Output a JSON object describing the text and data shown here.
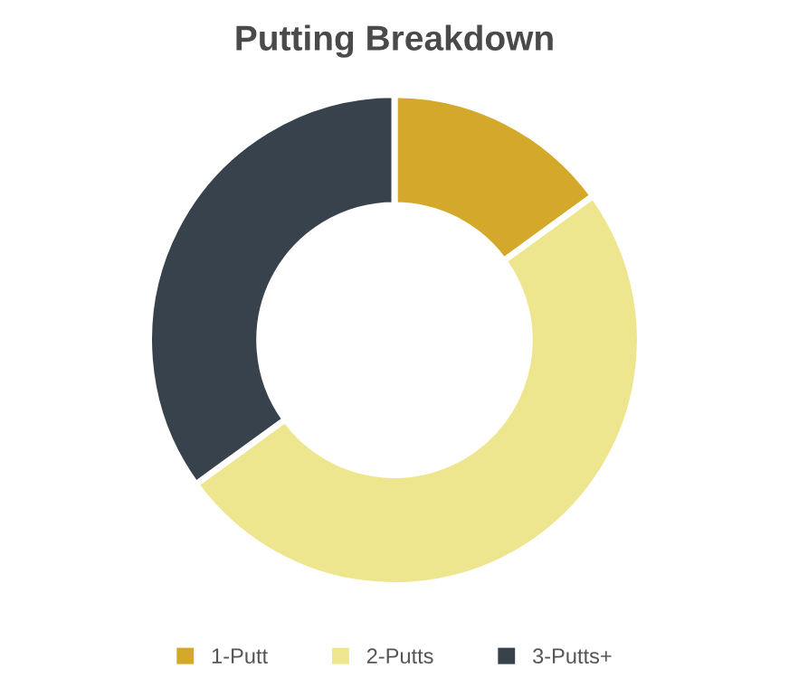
{
  "chart_data": {
    "type": "donut",
    "title": "Putting Breakdown",
    "categories": [
      "1-Putt",
      "2-Putts",
      "3-Putts+"
    ],
    "values": [
      15,
      50,
      35
    ],
    "colors": [
      "#d4a92b",
      "#ede68f",
      "#38424c"
    ],
    "legend": "bottom"
  }
}
